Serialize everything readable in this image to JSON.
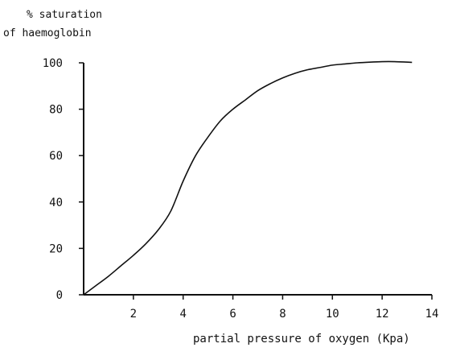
{
  "chart_data": {
    "type": "line",
    "title": "",
    "ylabel_lines": [
      "% saturation",
      "of haemoglobin"
    ],
    "xlabel": "partial pressure of oxygen (Kpa)",
    "xlim": [
      0,
      14
    ],
    "ylim": [
      0,
      100
    ],
    "x_ticks": [
      "2",
      "4",
      "6",
      "8",
      "10",
      "12",
      "14"
    ],
    "y_ticks": [
      "0",
      "20",
      "40",
      "60",
      "80",
      "100"
    ],
    "grid": false,
    "legend": "none",
    "series": [
      {
        "color": "#111111",
        "x": [
          0,
          0.5,
          1,
          1.5,
          2,
          2.5,
          3,
          3.5,
          4,
          4.5,
          5,
          5.5,
          6,
          6.5,
          7,
          7.5,
          8,
          8.5,
          9,
          9.5,
          10,
          10.5,
          11,
          11.5,
          12,
          12.5,
          13.2
        ],
        "y": [
          0,
          4,
          8,
          12.5,
          17,
          22,
          28,
          36,
          49,
          60,
          68,
          75,
          80,
          84,
          88,
          91,
          93.5,
          95.5,
          97,
          98,
          99,
          99.5,
          100,
          100.3,
          100.5,
          100.5,
          100.2
        ]
      }
    ]
  }
}
